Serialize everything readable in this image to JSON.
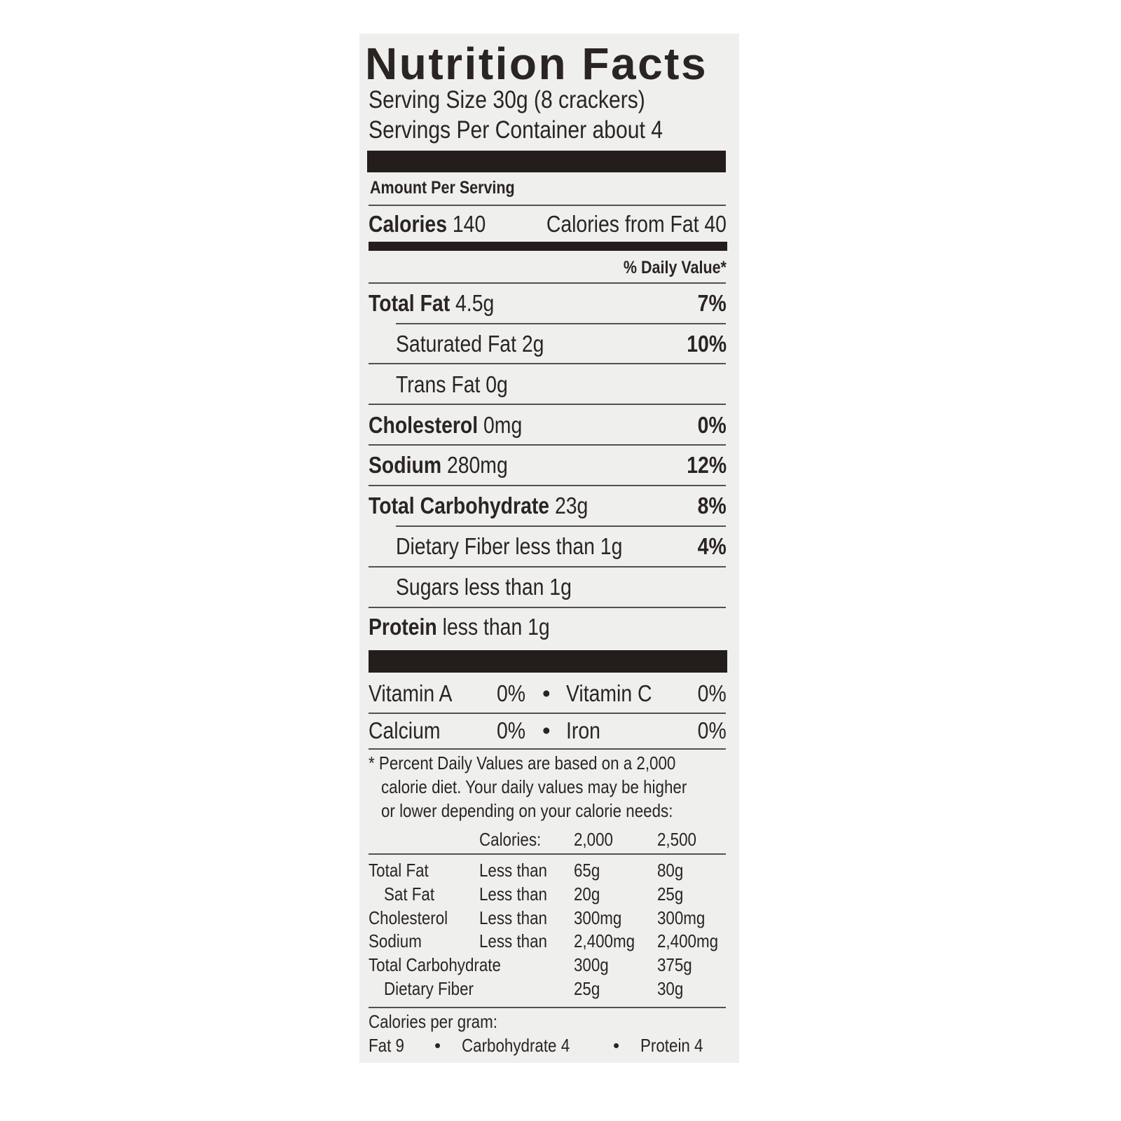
{
  "label": {
    "title": "Nutrition Facts",
    "serving_size": "Serving Size 30g (8 crackers)",
    "servings_per_container": "Servings Per Container about 4",
    "amount_per_serving": "Amount Per Serving",
    "calories_label": "Calories",
    "calories_value": "140",
    "calories_from_fat": "Calories from Fat 40",
    "daily_value_header": "% Daily Value*",
    "nutrients": [
      {
        "name": "Total Fat",
        "amount": "4.5g",
        "dv": "7%"
      },
      {
        "name": "Saturated Fat",
        "amount": "2g",
        "dv": "10%"
      },
      {
        "name": "Trans Fat",
        "amount": "0g",
        "dv": ""
      },
      {
        "name": "Cholesterol",
        "amount": "0mg",
        "dv": "0%"
      },
      {
        "name": "Sodium",
        "amount": "280mg",
        "dv": "12%"
      },
      {
        "name": "Total Carbohydrate",
        "amount": "23g",
        "dv": "8%"
      },
      {
        "name": "Dietary Fiber",
        "amount": "less than 1g",
        "dv": "4%"
      },
      {
        "name": "Sugars",
        "amount": "less than 1g",
        "dv": ""
      },
      {
        "name": "Protein",
        "amount": "less than 1g",
        "dv": ""
      }
    ],
    "vitamins": [
      {
        "name": "Vitamin A",
        "dv": "0%"
      },
      {
        "name": "Vitamin C",
        "dv": "0%"
      },
      {
        "name": "Calcium",
        "dv": "0%"
      },
      {
        "name": "Iron",
        "dv": "0%"
      }
    ],
    "bullet": "•",
    "footnote": [
      "* Percent Daily Values are based on a 2,000",
      "calorie diet. Your daily values may be higher",
      "or lower depending on your calorie needs:"
    ],
    "dv_table": {
      "header": [
        "",
        "Calories:",
        "2,000",
        "2,500"
      ],
      "rows": [
        [
          "Total Fat",
          "Less than",
          "65g",
          "80g"
        ],
        [
          "Sat Fat",
          "Less than",
          "20g",
          "25g"
        ],
        [
          "Cholesterol",
          "Less than",
          "300mg",
          "300mg"
        ],
        [
          "Sodium",
          "Less than",
          "2,400mg",
          "2,400mg"
        ],
        [
          "Total Carbohydrate",
          "",
          "300g",
          "375g"
        ],
        [
          "Dietary Fiber",
          "",
          "25g",
          "30g"
        ]
      ]
    },
    "calories_per_gram_label": "Calories per gram:",
    "calories_per_gram": [
      "Fat 9",
      "Carbohydrate 4",
      "Protein 4"
    ]
  },
  "colors": {
    "panel": "#efefed",
    "ink": "#231d1b"
  }
}
